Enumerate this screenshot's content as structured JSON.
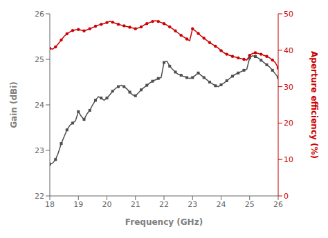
{
  "chart_data": {
    "type": "line",
    "xlabel": "Frequency (GHz)",
    "ylabel": "Gain (dBi)",
    "y2label": "Aperture efficiency (%)",
    "xlim": [
      18,
      26
    ],
    "ylim": [
      22,
      26
    ],
    "y2lim": [
      0,
      50
    ],
    "xticks": [
      18,
      19,
      20,
      21,
      22,
      23,
      24,
      25,
      26
    ],
    "yticks": [
      22,
      23,
      24,
      25,
      26
    ],
    "y2ticks": [
      0,
      10,
      20,
      30,
      40,
      50
    ],
    "grid": false,
    "x": [
      18.0,
      18.1,
      18.2,
      18.3,
      18.4,
      18.5,
      18.6,
      18.7,
      18.8,
      18.9,
      19.0,
      19.1,
      19.2,
      19.3,
      19.4,
      19.5,
      19.6,
      19.7,
      19.8,
      19.9,
      20.0,
      20.1,
      20.2,
      20.3,
      20.4,
      20.5,
      20.6,
      20.7,
      20.8,
      20.9,
      21.0,
      21.1,
      21.2,
      21.3,
      21.4,
      21.5,
      21.6,
      21.7,
      21.8,
      21.9,
      22.0,
      22.1,
      22.2,
      22.3,
      22.4,
      22.5,
      22.6,
      22.7,
      22.8,
      22.9,
      23.0,
      23.1,
      23.2,
      23.3,
      23.4,
      23.5,
      23.6,
      23.7,
      23.8,
      23.9,
      24.0,
      24.1,
      24.2,
      24.3,
      24.4,
      24.5,
      24.6,
      24.7,
      24.8,
      24.9,
      25.0,
      25.1,
      25.2,
      25.3,
      25.4,
      25.5,
      25.6,
      25.7,
      25.8,
      25.9,
      26.0
    ],
    "series": [
      {
        "color": "#4d4d4d",
        "marker": "square",
        "axis": "y",
        "values": [
          22.7,
          22.72,
          22.8,
          22.95,
          23.15,
          23.3,
          23.45,
          23.55,
          23.6,
          23.65,
          23.85,
          23.75,
          23.68,
          23.8,
          23.88,
          24.0,
          24.1,
          24.18,
          24.15,
          24.1,
          24.15,
          24.22,
          24.3,
          24.36,
          24.4,
          24.43,
          24.4,
          24.35,
          24.28,
          24.22,
          24.2,
          24.26,
          24.33,
          24.38,
          24.43,
          24.48,
          24.52,
          24.55,
          24.58,
          24.6,
          24.93,
          24.96,
          24.85,
          24.78,
          24.72,
          24.67,
          24.65,
          24.62,
          24.6,
          24.58,
          24.6,
          24.65,
          24.7,
          24.65,
          24.6,
          24.55,
          24.5,
          24.46,
          24.42,
          24.4,
          24.44,
          24.48,
          24.53,
          24.58,
          24.63,
          24.67,
          24.7,
          24.73,
          24.76,
          24.78,
          25.03,
          25.08,
          25.06,
          25.03,
          24.98,
          24.93,
          24.88,
          24.83,
          24.76,
          24.68,
          24.6
        ]
      },
      {
        "color": "#cc0000",
        "marker": "circle",
        "axis": "y2",
        "values": [
          40.5,
          40.3,
          40.9,
          41.8,
          42.8,
          43.8,
          44.5,
          45.0,
          45.4,
          45.6,
          45.7,
          45.5,
          45.3,
          45.6,
          45.9,
          46.2,
          46.6,
          46.9,
          47.1,
          47.3,
          47.6,
          47.9,
          47.7,
          47.4,
          47.1,
          46.9,
          46.7,
          46.5,
          46.3,
          46.1,
          45.9,
          46.1,
          46.4,
          46.9,
          47.3,
          47.6,
          47.9,
          48.1,
          47.9,
          47.6,
          47.3,
          46.9,
          46.4,
          45.9,
          45.3,
          44.7,
          44.1,
          43.6,
          43.1,
          42.6,
          45.9,
          45.3,
          44.6,
          43.9,
          43.3,
          42.7,
          42.1,
          41.6,
          41.1,
          40.6,
          39.9,
          39.3,
          38.9,
          38.6,
          38.3,
          38.1,
          37.9,
          37.7,
          37.5,
          37.3,
          38.6,
          39.1,
          39.3,
          39.1,
          38.9,
          38.6,
          38.3,
          37.9,
          37.3,
          36.6,
          35.1
        ]
      }
    ]
  }
}
